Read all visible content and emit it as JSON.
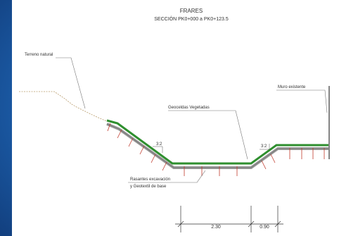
{
  "header": {
    "title": "FRARES",
    "subtitle": "SECCIÓN PK0+000 a PK0+123.5"
  },
  "labels": {
    "terrain": "Terreno natural",
    "wall": "Muro existente",
    "geocells": "Geoceldas Vegetadas",
    "base_line1": "Rasantes excavación",
    "base_line2": "y Geotextil de base",
    "slope_left": "3:2",
    "slope_right": "3:2"
  },
  "dimensions": {
    "dim1": "2.30",
    "dim2": "0.90"
  },
  "colors": {
    "frame": "#1d5ea8",
    "geocell": "#2f8f2f",
    "anchor": "#c0392b",
    "terrain": "#b79a6a"
  }
}
